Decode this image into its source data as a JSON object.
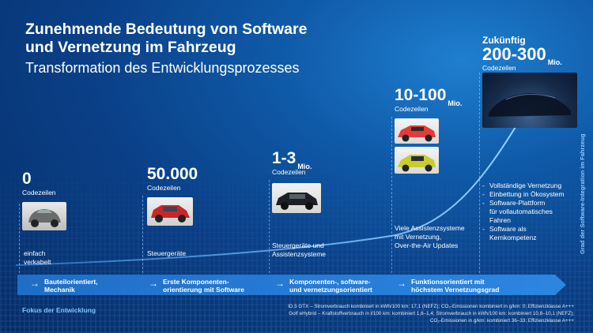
{
  "title_line1": "Zunehmende Bedeutung von Software",
  "title_line2": "und Vernetzung im Fahrzeug",
  "subtitle": "Transformation des Entwicklungsprozesses",
  "stages": [
    {
      "number": "0",
      "unit": "",
      "label": "Codezeilen",
      "desc": [
        "einfach",
        "verkabelt"
      ]
    },
    {
      "number": "50.000",
      "unit": "",
      "label": "Codezeilen",
      "desc": [
        "Steuergeräte"
      ]
    },
    {
      "number": "1-3",
      "unit": "Mio.",
      "label": "Codezeilen",
      "desc": [
        "Steuergeräte und",
        "Assistenzsysteme"
      ]
    },
    {
      "number": "10-100",
      "unit": "Mio.",
      "label": "Codezeilen",
      "desc": [
        "Viele Assistenzsysteme",
        "mit Vernetzung,",
        "Over-the-Air Updates"
      ]
    },
    {
      "prefix": "Zukünftig",
      "number": "200-300",
      "unit": "Mio.",
      "label": "Codezeilen"
    }
  ],
  "future_bullets": [
    "Vollständige Vernetzung",
    "Einbettung in Ökosystem",
    "Software-Plattform",
    "für vollautomatisches",
    "Fahren",
    "Software als",
    "Kernkompetenz"
  ],
  "focus_items": [
    [
      "Bauteilorientiert,",
      "Mechanik"
    ],
    [
      "Erste Komponenten-",
      "orientierung mit Software"
    ],
    [
      "Komponenten-, software-",
      "und vernetzungsorientiert"
    ],
    [
      "Funktionsorientiert mit",
      "höchstem Vernetzungsgrad"
    ]
  ],
  "focus_label": "Fokus der Entwicklung",
  "vertical_label": "Grad der Software-Integration im Fahrzeug",
  "footnote": [
    "ID.5 GTX – Stromverbrauch kombiniert in kWh/100 km: 17,1 (NEFZ); CO₂-Emissionen kombiniert in g/km: 0; Effizienzklasse A+++",
    "Golf eHybrid – Kraftstoffverbrauch in l/100 km: kombiniert 1,6–1,4; Stromverbrauch in kWh/100 km: kombiniert 10,8–10,1 (NEFZ);",
    "CO₂-Emissionen in g/km: kombiniert 36–33; Effizienzklasse A+++"
  ],
  "colors": {
    "accent": "#2b86e0",
    "focus_text": "#7ec3ff"
  },
  "icons": {
    "arrow": "→"
  }
}
